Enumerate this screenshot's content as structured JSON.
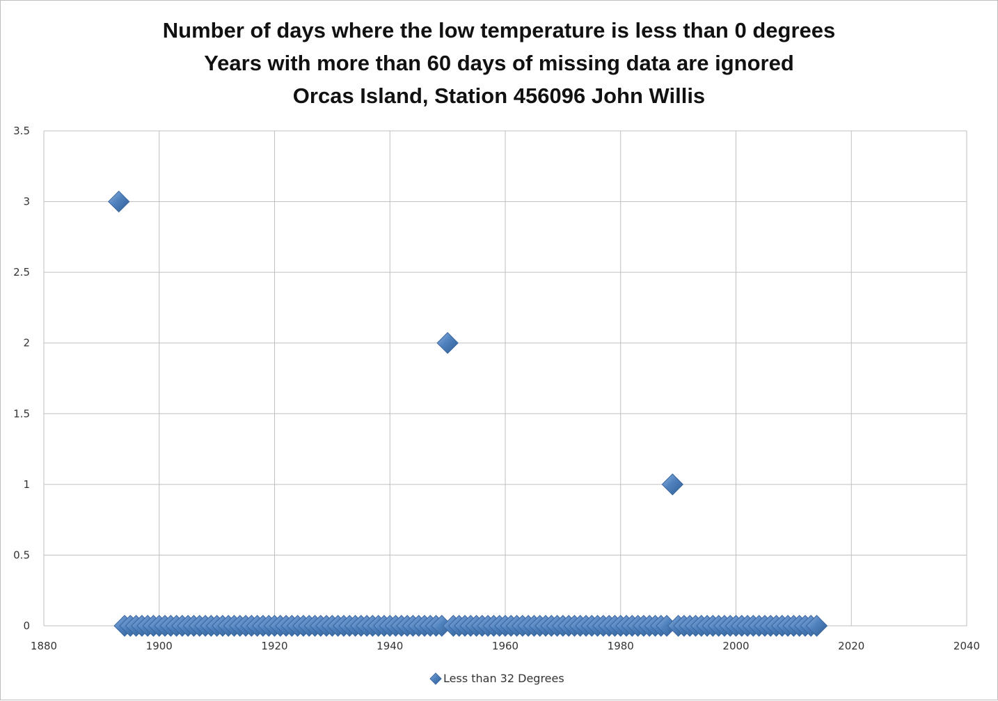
{
  "chart_data": {
    "type": "scatter",
    "title_lines": [
      "Number of days where the low temperature is less than 0 degrees",
      "Years with more than 60 days of missing data are ignored",
      "Orcas Island, Station 456096 John Willis"
    ],
    "xlabel": "",
    "ylabel": "",
    "xlim": [
      1880,
      2040
    ],
    "ylim": [
      0,
      3.5
    ],
    "x_ticks": [
      "1880",
      "1900",
      "1920",
      "1940",
      "1960",
      "1980",
      "2000",
      "2020",
      "2040"
    ],
    "y_ticks": [
      "0",
      "0.5",
      "1",
      "1.5",
      "2",
      "2.5",
      "3",
      "3.5"
    ],
    "grid": true,
    "legend_position": "bottom",
    "marker": "diamond",
    "colors": {
      "marker": "#4f81bd",
      "marker_edge": "#3a66a0",
      "grid": "#bfbfbf"
    },
    "series": [
      {
        "name": "Less than 32 Degrees",
        "points": [
          [
            1893,
            3
          ],
          [
            1894,
            0
          ],
          [
            1895,
            0
          ],
          [
            1896,
            0
          ],
          [
            1897,
            0
          ],
          [
            1898,
            0
          ],
          [
            1899,
            0
          ],
          [
            1900,
            0
          ],
          [
            1901,
            0
          ],
          [
            1902,
            0
          ],
          [
            1903,
            0
          ],
          [
            1904,
            0
          ],
          [
            1905,
            0
          ],
          [
            1906,
            0
          ],
          [
            1907,
            0
          ],
          [
            1908,
            0
          ],
          [
            1909,
            0
          ],
          [
            1910,
            0
          ],
          [
            1911,
            0
          ],
          [
            1912,
            0
          ],
          [
            1913,
            0
          ],
          [
            1914,
            0
          ],
          [
            1915,
            0
          ],
          [
            1916,
            0
          ],
          [
            1917,
            0
          ],
          [
            1918,
            0
          ],
          [
            1919,
            0
          ],
          [
            1920,
            0
          ],
          [
            1921,
            0
          ],
          [
            1922,
            0
          ],
          [
            1923,
            0
          ],
          [
            1924,
            0
          ],
          [
            1925,
            0
          ],
          [
            1926,
            0
          ],
          [
            1927,
            0
          ],
          [
            1928,
            0
          ],
          [
            1929,
            0
          ],
          [
            1930,
            0
          ],
          [
            1931,
            0
          ],
          [
            1932,
            0
          ],
          [
            1933,
            0
          ],
          [
            1934,
            0
          ],
          [
            1935,
            0
          ],
          [
            1936,
            0
          ],
          [
            1937,
            0
          ],
          [
            1938,
            0
          ],
          [
            1939,
            0
          ],
          [
            1940,
            0
          ],
          [
            1941,
            0
          ],
          [
            1942,
            0
          ],
          [
            1943,
            0
          ],
          [
            1944,
            0
          ],
          [
            1945,
            0
          ],
          [
            1946,
            0
          ],
          [
            1947,
            0
          ],
          [
            1948,
            0
          ],
          [
            1949,
            0
          ],
          [
            1950,
            2
          ],
          [
            1951,
            0
          ],
          [
            1952,
            0
          ],
          [
            1953,
            0
          ],
          [
            1954,
            0
          ],
          [
            1955,
            0
          ],
          [
            1956,
            0
          ],
          [
            1957,
            0
          ],
          [
            1958,
            0
          ],
          [
            1959,
            0
          ],
          [
            1960,
            0
          ],
          [
            1961,
            0
          ],
          [
            1962,
            0
          ],
          [
            1963,
            0
          ],
          [
            1964,
            0
          ],
          [
            1965,
            0
          ],
          [
            1966,
            0
          ],
          [
            1967,
            0
          ],
          [
            1968,
            0
          ],
          [
            1969,
            0
          ],
          [
            1970,
            0
          ],
          [
            1971,
            0
          ],
          [
            1972,
            0
          ],
          [
            1973,
            0
          ],
          [
            1974,
            0
          ],
          [
            1975,
            0
          ],
          [
            1976,
            0
          ],
          [
            1977,
            0
          ],
          [
            1978,
            0
          ],
          [
            1979,
            0
          ],
          [
            1980,
            0
          ],
          [
            1981,
            0
          ],
          [
            1982,
            0
          ],
          [
            1983,
            0
          ],
          [
            1984,
            0
          ],
          [
            1985,
            0
          ],
          [
            1986,
            0
          ],
          [
            1987,
            0
          ],
          [
            1988,
            0
          ],
          [
            1989,
            1
          ],
          [
            1990,
            0
          ],
          [
            1991,
            0
          ],
          [
            1992,
            0
          ],
          [
            1993,
            0
          ],
          [
            1994,
            0
          ],
          [
            1995,
            0
          ],
          [
            1996,
            0
          ],
          [
            1997,
            0
          ],
          [
            1998,
            0
          ],
          [
            1999,
            0
          ],
          [
            2000,
            0
          ],
          [
            2001,
            0
          ],
          [
            2002,
            0
          ],
          [
            2003,
            0
          ],
          [
            2004,
            0
          ],
          [
            2005,
            0
          ],
          [
            2006,
            0
          ],
          [
            2007,
            0
          ],
          [
            2008,
            0
          ],
          [
            2009,
            0
          ],
          [
            2010,
            0
          ],
          [
            2011,
            0
          ],
          [
            2012,
            0
          ],
          [
            2013,
            0
          ],
          [
            2014,
            0
          ]
        ]
      }
    ]
  }
}
